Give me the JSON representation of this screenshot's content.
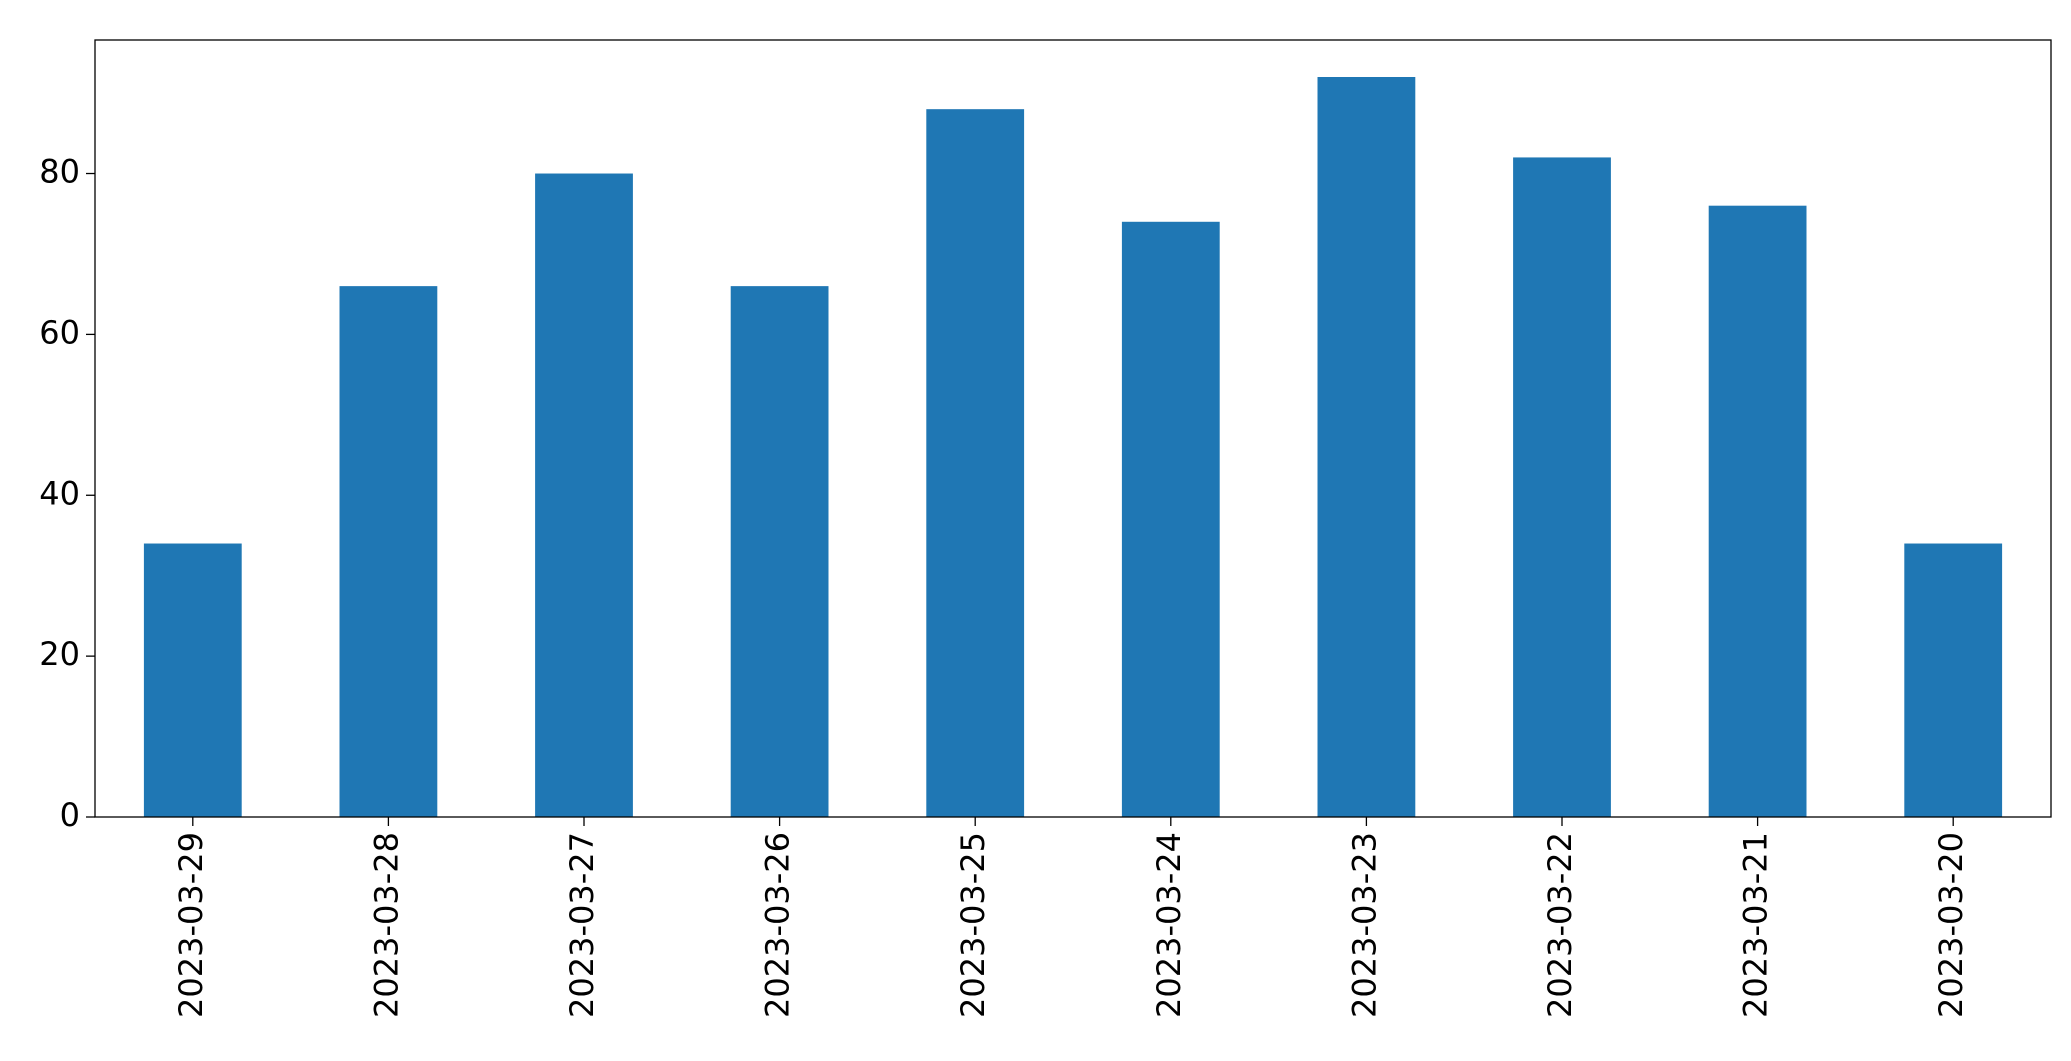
{
  "chart_data": {
    "type": "bar",
    "categories": [
      "2023-03-29",
      "2023-03-28",
      "2023-03-27",
      "2023-03-26",
      "2023-03-25",
      "2023-03-24",
      "2023-03-23",
      "2023-03-22",
      "2023-03-21",
      "2023-03-20"
    ],
    "values": [
      34,
      66,
      80,
      66,
      88,
      74,
      92,
      82,
      76,
      34
    ],
    "color": "#1f77b4",
    "ylim": [
      0,
      96.6
    ],
    "yticks": [
      0,
      20,
      40,
      60,
      80
    ],
    "grid": false
  }
}
